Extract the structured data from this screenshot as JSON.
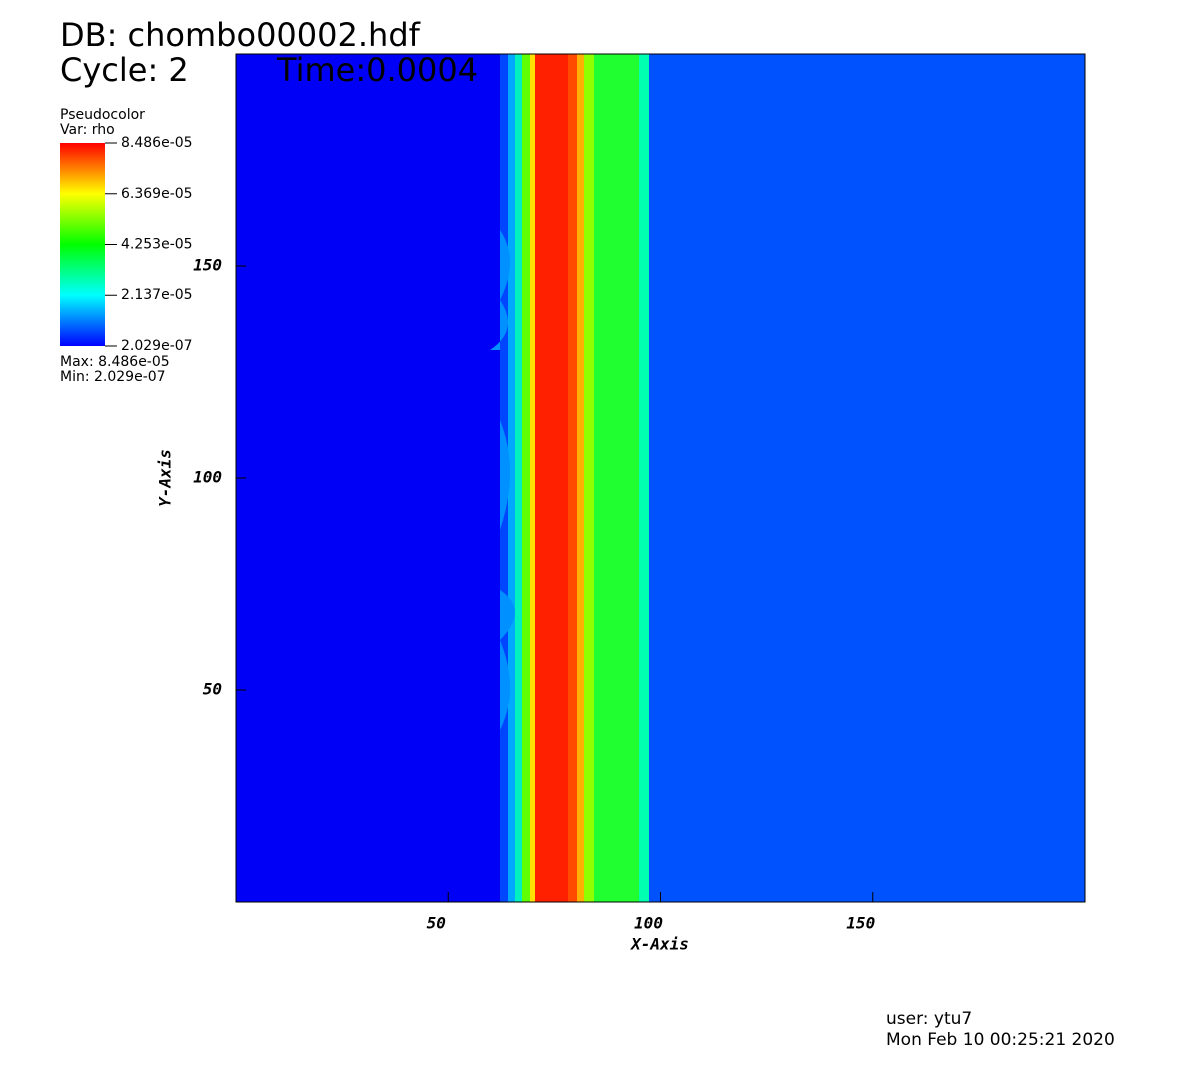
{
  "chart_data": {
    "type": "pseudocolor",
    "title": "DB: chombo00002.hdf",
    "cycle": "Cycle: 2",
    "time": "Time:0.0004",
    "legend": {
      "plot": "Pseudocolor",
      "var": "Var: rho",
      "max": "Max:  8.486e-05",
      "min": "Min:  2.029e-07",
      "lim": [
        2.029e-07,
        8.486e-05
      ],
      "ticks": [
        {
          "value": 8.486e-05,
          "label": "8.486e-05"
        },
        {
          "value": 6.369e-05,
          "label": "6.369e-05"
        },
        {
          "value": 4.253e-05,
          "label": "4.253e-05"
        },
        {
          "value": 2.137e-05,
          "label": "2.137e-05"
        },
        {
          "value": 2.029e-07,
          "label": "2.029e-07"
        }
      ]
    },
    "x_label": "X-Axis",
    "y_label": "Y-Axis",
    "xlim": [
      0,
      200
    ],
    "ylim": [
      0,
      200
    ],
    "xticks": [
      50,
      100,
      150
    ],
    "yticks": [
      50,
      100,
      150
    ],
    "user": "user: ytu7",
    "date": "Mon Feb 10 00:25:21 2020"
  }
}
